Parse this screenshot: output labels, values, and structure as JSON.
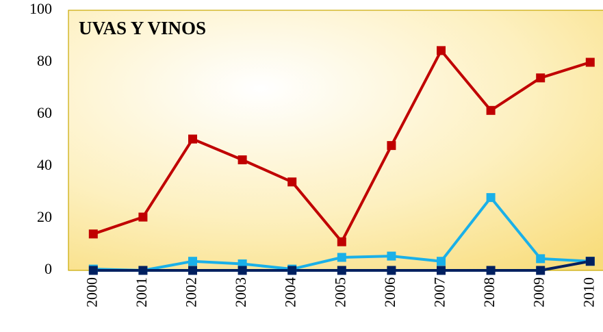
{
  "chart_data": {
    "type": "line",
    "title": "UVAS Y VINOS",
    "categories": [
      "2000",
      "2001",
      "2002",
      "2003",
      "2004",
      "2005",
      "2006",
      "2007",
      "2008",
      "2009",
      "2010"
    ],
    "series": [
      {
        "color": "#c00000",
        "values": [
          14,
          20.5,
          50.5,
          42.5,
          34,
          11,
          48,
          84.5,
          61.5,
          74,
          80
        ]
      },
      {
        "color": "#1ab0e8",
        "values": [
          0.5,
          0,
          3.5,
          2.5,
          0.5,
          5,
          5.5,
          3.5,
          28,
          4.5,
          3.5
        ]
      },
      {
        "color": "#002060",
        "values": [
          0,
          0,
          0,
          0,
          0,
          0,
          0,
          0,
          0,
          0,
          3.5
        ]
      }
    ],
    "ylim": [
      0,
      100
    ],
    "yticks": [
      0,
      20,
      40,
      60,
      80,
      100
    ],
    "grid": false
  }
}
